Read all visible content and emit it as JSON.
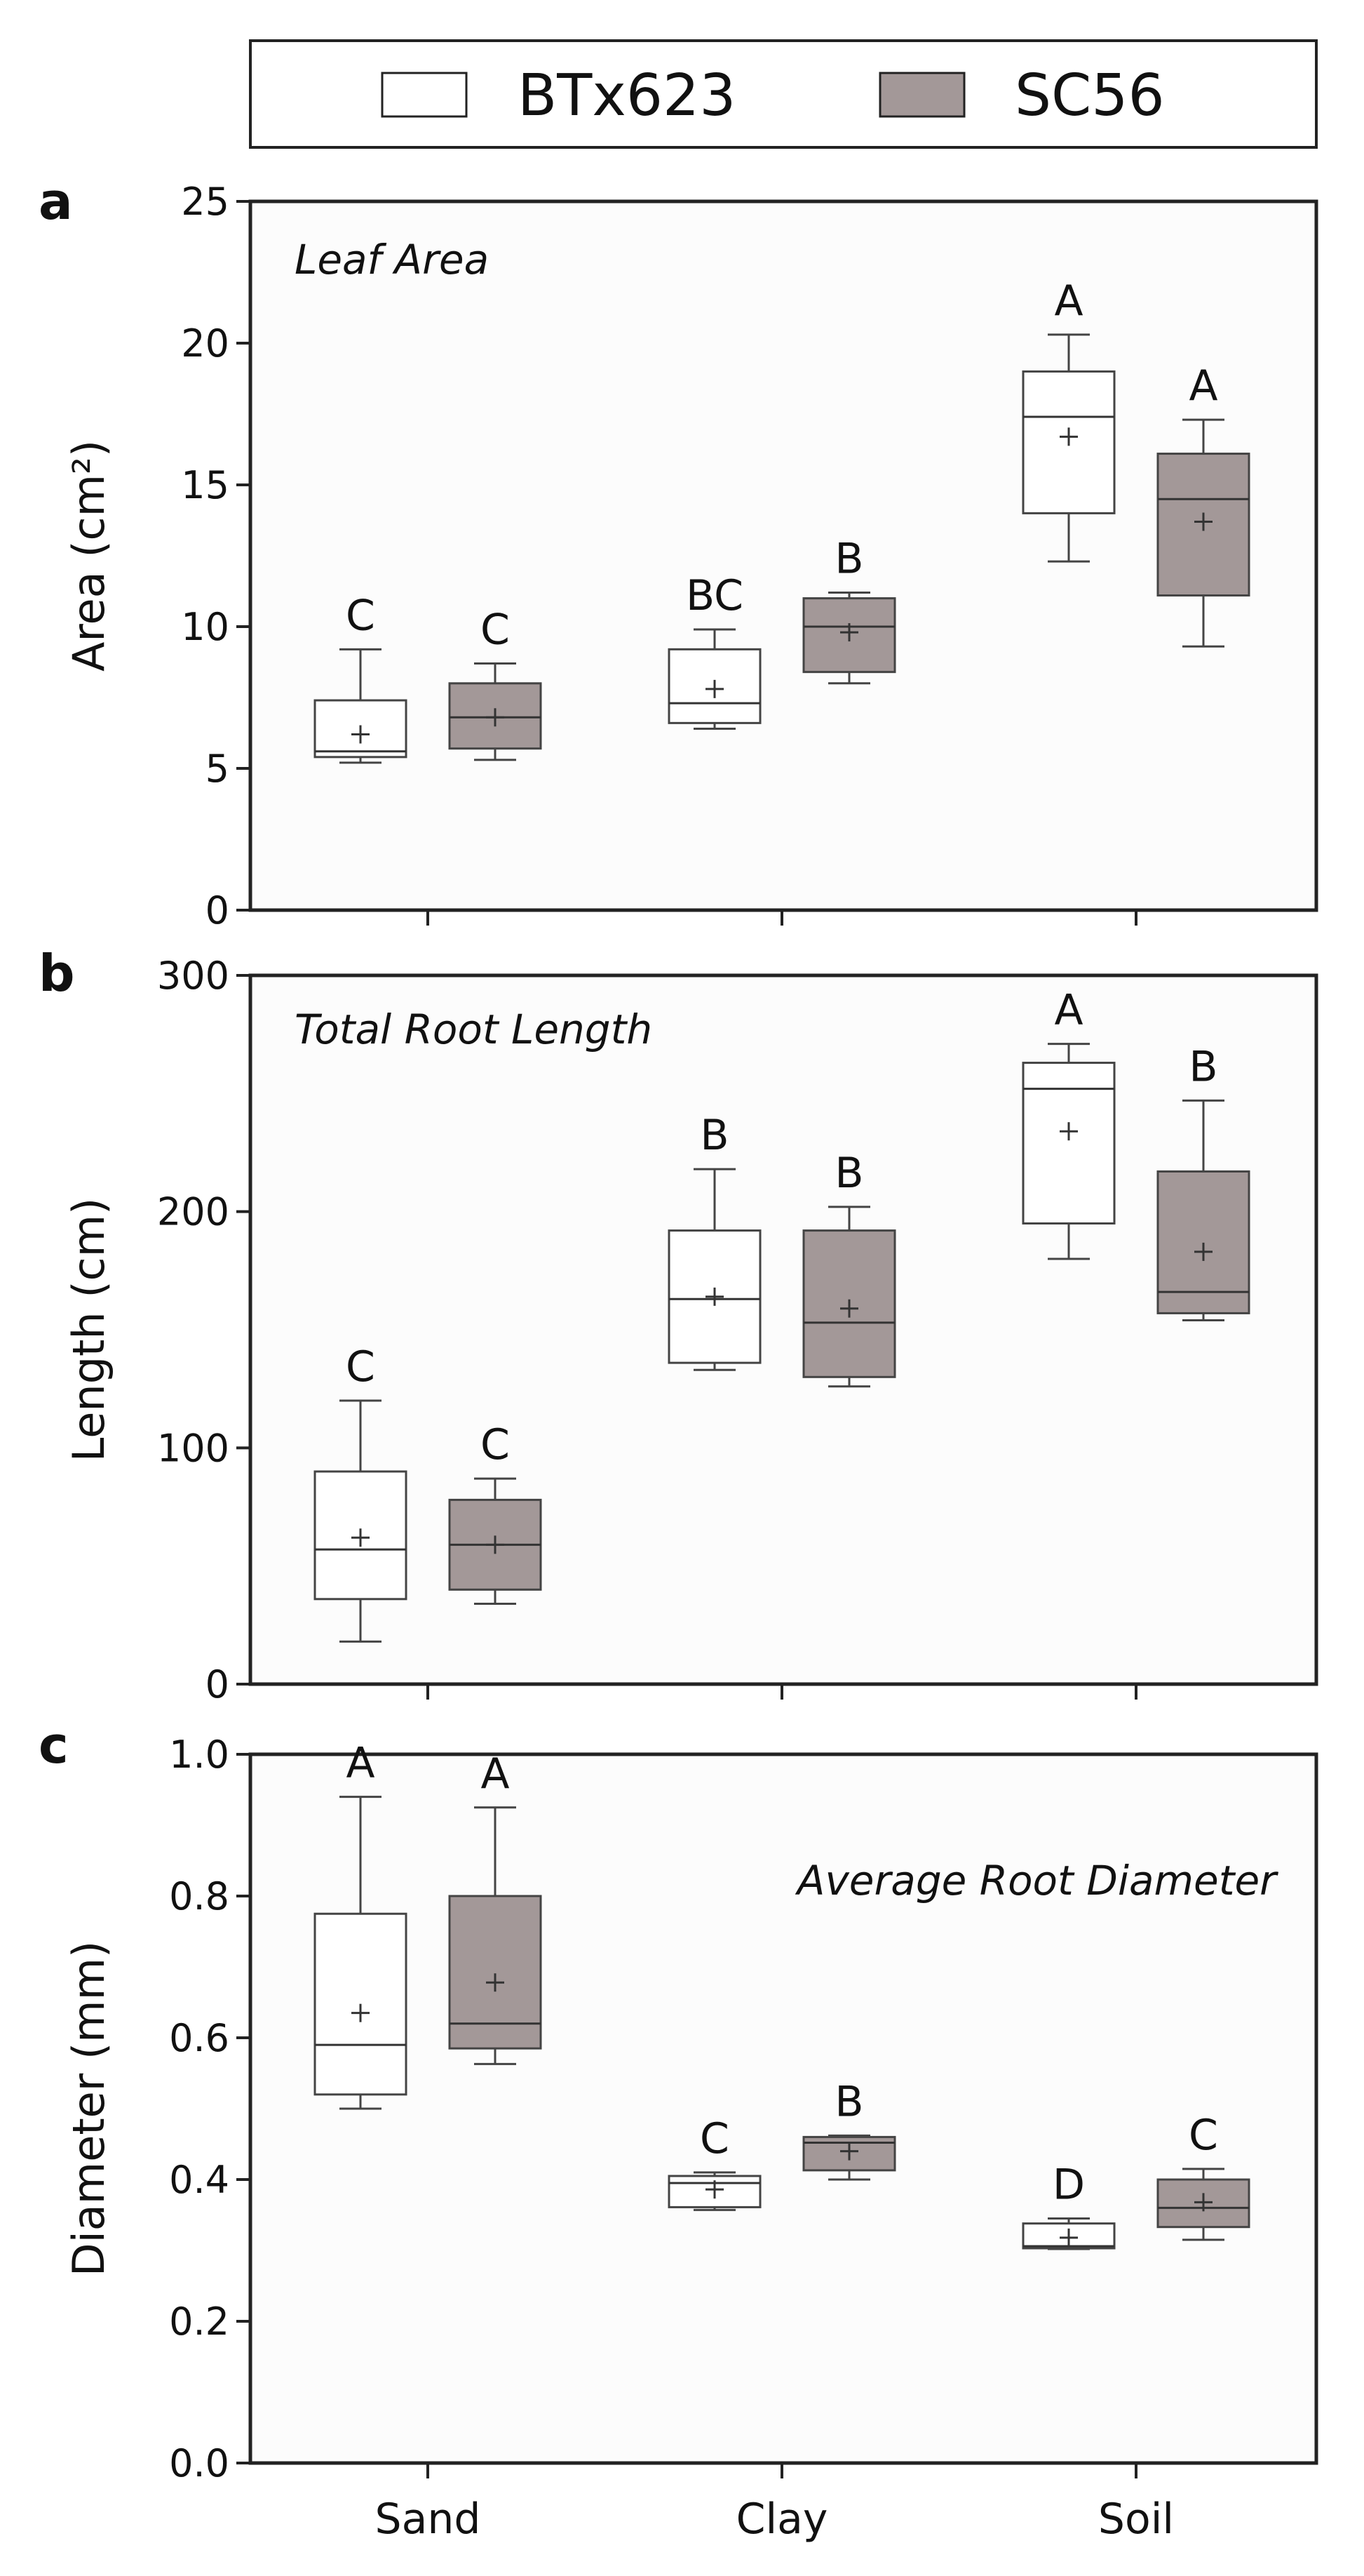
{
  "legend": {
    "items": [
      {
        "label": "BTx623",
        "color": "#ffffff"
      },
      {
        "label": "SC56",
        "color": "#a39898"
      }
    ]
  },
  "colors": {
    "axis": "#222222",
    "box_stroke": "#444444",
    "background": "#fcfcfc"
  },
  "chart_data": [
    {
      "type": "box",
      "panel_letter": "a",
      "title": "Leaf Area",
      "ylabel": "Area (cm²)",
      "ylim": [
        0,
        25
      ],
      "yticks": [
        0,
        5,
        10,
        15,
        20,
        25
      ],
      "ytick_labels": [
        "0",
        "5",
        "10",
        "15",
        "20",
        "25"
      ],
      "categories": [
        "Sand",
        "Clay",
        "Soil"
      ],
      "title_position": "top-left",
      "series": [
        {
          "name": "BTx623",
          "boxes": [
            {
              "min": 5.2,
              "q1": 5.4,
              "median": 5.6,
              "q3": 7.4,
              "max": 9.2,
              "mean": 6.2,
              "letter": "C"
            },
            {
              "min": 6.4,
              "q1": 6.6,
              "median": 7.3,
              "q3": 9.2,
              "max": 9.9,
              "mean": 7.8,
              "letter": "BC"
            },
            {
              "min": 12.3,
              "q1": 14.0,
              "median": 17.4,
              "q3": 19.0,
              "max": 20.3,
              "mean": 16.7,
              "letter": "A"
            }
          ]
        },
        {
          "name": "SC56",
          "boxes": [
            {
              "min": 5.3,
              "q1": 5.7,
              "median": 6.8,
              "q3": 8.0,
              "max": 8.7,
              "mean": 6.8,
              "letter": "C"
            },
            {
              "min": 8.0,
              "q1": 8.4,
              "median": 10.0,
              "q3": 11.0,
              "max": 11.2,
              "mean": 9.8,
              "letter": "B"
            },
            {
              "min": 9.3,
              "q1": 11.1,
              "median": 14.5,
              "q3": 16.1,
              "max": 17.3,
              "mean": 13.7,
              "letter": "A"
            }
          ]
        }
      ]
    },
    {
      "type": "box",
      "panel_letter": "b",
      "title": "Total Root Length",
      "ylabel": "Length (cm)",
      "ylim": [
        0,
        300
      ],
      "yticks": [
        0,
        100,
        200,
        300
      ],
      "ytick_labels": [
        "0",
        "100",
        "200",
        "300"
      ],
      "categories": [
        "Sand",
        "Clay",
        "Soil"
      ],
      "title_position": "top-left",
      "series": [
        {
          "name": "BTx623",
          "boxes": [
            {
              "min": 18,
              "q1": 36,
              "median": 57,
              "q3": 90,
              "max": 120,
              "mean": 62,
              "letter": "C"
            },
            {
              "min": 133,
              "q1": 136,
              "median": 163,
              "q3": 192,
              "max": 218,
              "mean": 164,
              "letter": "B"
            },
            {
              "min": 180,
              "q1": 195,
              "median": 252,
              "q3": 263,
              "max": 271,
              "mean": 234,
              "letter": "A"
            }
          ]
        },
        {
          "name": "SC56",
          "boxes": [
            {
              "min": 34,
              "q1": 40,
              "median": 59,
              "q3": 78,
              "max": 87,
              "mean": 59,
              "letter": "C"
            },
            {
              "min": 126,
              "q1": 130,
              "median": 153,
              "q3": 192,
              "max": 202,
              "mean": 159,
              "letter": "B"
            },
            {
              "min": 154,
              "q1": 157,
              "median": 166,
              "q3": 217,
              "max": 247,
              "mean": 183,
              "letter": "B"
            }
          ]
        }
      ]
    },
    {
      "type": "box",
      "panel_letter": "c",
      "title": "Average Root Diameter",
      "ylabel": "Diameter (mm)",
      "ylim": [
        0,
        1.0
      ],
      "yticks": [
        0,
        0.2,
        0.4,
        0.6,
        0.8,
        1.0
      ],
      "ytick_labels": [
        "0.0",
        "0.2",
        "0.4",
        "0.6",
        "0.8",
        "1.0"
      ],
      "categories": [
        "Sand",
        "Clay",
        "Soil"
      ],
      "title_position": "top-right",
      "series": [
        {
          "name": "BTx623",
          "boxes": [
            {
              "min": 0.5,
              "q1": 0.52,
              "median": 0.59,
              "q3": 0.775,
              "max": 0.94,
              "mean": 0.635,
              "letter": "A"
            },
            {
              "min": 0.357,
              "q1": 0.361,
              "median": 0.395,
              "q3": 0.405,
              "max": 0.41,
              "mean": 0.386,
              "letter": "C"
            },
            {
              "min": 0.302,
              "q1": 0.303,
              "median": 0.306,
              "q3": 0.338,
              "max": 0.345,
              "mean": 0.318,
              "letter": "D"
            }
          ]
        },
        {
          "name": "SC56",
          "boxes": [
            {
              "min": 0.563,
              "q1": 0.585,
              "median": 0.62,
              "q3": 0.8,
              "max": 0.925,
              "mean": 0.678,
              "letter": "A"
            },
            {
              "min": 0.4,
              "q1": 0.413,
              "median": 0.452,
              "q3": 0.46,
              "max": 0.462,
              "mean": 0.44,
              "letter": "B"
            },
            {
              "min": 0.315,
              "q1": 0.333,
              "median": 0.36,
              "q3": 0.4,
              "max": 0.415,
              "mean": 0.368,
              "letter": "C"
            }
          ]
        }
      ]
    }
  ]
}
